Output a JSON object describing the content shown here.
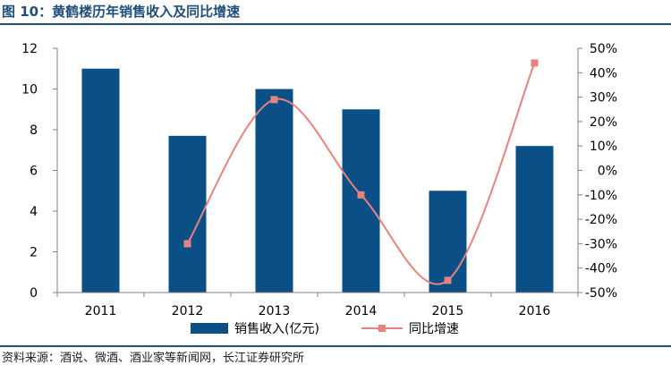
{
  "header": {
    "title": "图 10：黄鹤楼历年销售收入及同比增速"
  },
  "footer": {
    "source": "资料来源：酒说、微酒、酒业家等新闻网，长江证券研究所"
  },
  "chart_data": {
    "type": "bar",
    "categories": [
      "2011",
      "2012",
      "2013",
      "2014",
      "2015",
      "2016"
    ],
    "series": [
      {
        "name": "销售收入(亿元)",
        "type": "bar",
        "axis": "left",
        "color": "#0a4f86",
        "values": [
          11.0,
          7.7,
          10.0,
          9.0,
          5.0,
          7.2
        ]
      },
      {
        "name": "同比增速",
        "type": "line",
        "axis": "right",
        "color": "#e8827f",
        "values": [
          null,
          -30,
          29,
          -10,
          -45,
          44
        ]
      }
    ],
    "y_left": {
      "min": 0,
      "max": 12,
      "ticks": [
        "0",
        "2",
        "4",
        "6",
        "8",
        "10",
        "12"
      ]
    },
    "y_right": {
      "min": -50,
      "max": 50,
      "ticks": [
        "-50%",
        "-40%",
        "-30%",
        "-20%",
        "-10%",
        "0%",
        "10%",
        "20%",
        "30%",
        "40%",
        "50%"
      ]
    },
    "legend_position": "bottom",
    "grid": false
  }
}
